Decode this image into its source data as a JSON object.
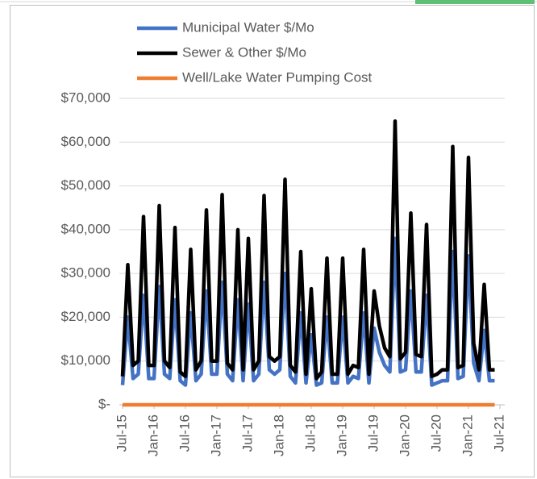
{
  "chart_data": {
    "type": "line",
    "categories": [
      "Jul-15",
      null,
      null,
      null,
      null,
      null,
      "Jan-16",
      null,
      null,
      null,
      null,
      null,
      "Jul-16",
      null,
      null,
      null,
      null,
      null,
      "Jan-17",
      null,
      null,
      null,
      null,
      null,
      "Jul-17",
      null,
      null,
      null,
      null,
      null,
      "Jan-18",
      null,
      null,
      null,
      null,
      null,
      "Jul-18",
      null,
      null,
      null,
      null,
      null,
      "Jan-19",
      null,
      null,
      null,
      null,
      null,
      "Jul-19",
      null,
      null,
      null,
      null,
      null,
      "Jan-20",
      null,
      null,
      null,
      null,
      null,
      "Jul-20",
      null,
      null,
      null,
      null,
      null,
      "Jan-21",
      null,
      null,
      null,
      null,
      null,
      "Jul-21"
    ],
    "series": [
      {
        "name": "Municipal Water $/Mo",
        "color": "#4472c4",
        "values": [
          4500,
          20000,
          6000,
          7000,
          25000,
          6000,
          6000,
          27000,
          7000,
          6000,
          24000,
          5500,
          4500,
          21000,
          5500,
          7000,
          26000,
          7000,
          7000,
          28000,
          7000,
          5500,
          24000,
          5500,
          23000,
          5500,
          7000,
          28000,
          8000,
          7000,
          8000,
          30000,
          6500,
          5000,
          21000,
          5000,
          16000,
          4500,
          5000,
          20000,
          5000,
          5000,
          20000,
          5000,
          6500,
          6000,
          21000,
          5000,
          17500,
          12000,
          9000,
          7500,
          38000,
          7500,
          8000,
          26000,
          7500,
          7500,
          25000,
          4500,
          5000,
          5500,
          5500,
          35000,
          6000,
          6500,
          34000,
          9500,
          5500,
          17000,
          5500,
          5500,
          null
        ]
      },
      {
        "name": "Sewer & Other $/Mo",
        "color": "#000000",
        "values": [
          6500,
          32000,
          9000,
          10000,
          43000,
          9000,
          9000,
          45500,
          10000,
          8500,
          40500,
          7500,
          6500,
          35500,
          8000,
          10000,
          44500,
          10000,
          10000,
          48000,
          9500,
          8000,
          40000,
          8000,
          38000,
          8000,
          10000,
          47800,
          11000,
          10000,
          11000,
          51500,
          9000,
          7500,
          35000,
          7000,
          26500,
          6000,
          7500,
          33500,
          7000,
          7000,
          33500,
          7000,
          9000,
          8500,
          35500,
          7000,
          26000,
          18000,
          13000,
          11000,
          64800,
          10500,
          12000,
          43800,
          11500,
          11000,
          41200,
          6500,
          7000,
          8000,
          8000,
          59000,
          8500,
          9000,
          56500,
          14000,
          8000,
          27500,
          8000,
          8000,
          null
        ]
      },
      {
        "name": "Well/Lake Water Pumping Cost",
        "color": "#ed7d31",
        "values": [
          0,
          0,
          0,
          0,
          0,
          0,
          0,
          0,
          0,
          0,
          0,
          0,
          0,
          0,
          0,
          0,
          0,
          0,
          0,
          0,
          0,
          0,
          0,
          0,
          0,
          0,
          0,
          0,
          0,
          0,
          0,
          0,
          0,
          0,
          0,
          0,
          0,
          0,
          0,
          0,
          0,
          0,
          0,
          0,
          0,
          0,
          0,
          0,
          0,
          0,
          0,
          0,
          0,
          0,
          0,
          0,
          0,
          0,
          0,
          0,
          0,
          0,
          0,
          0,
          0,
          0,
          0,
          0,
          0,
          0,
          0,
          0,
          null
        ]
      }
    ],
    "ylim": [
      0,
      70000
    ],
    "yticks": [
      {
        "value": 0,
        "label": "$-"
      },
      {
        "value": 10000,
        "label": "$10,000"
      },
      {
        "value": 20000,
        "label": "$20,000"
      },
      {
        "value": 30000,
        "label": "$30,000"
      },
      {
        "value": 40000,
        "label": "$40,000"
      },
      {
        "value": 50000,
        "label": "$50,000"
      },
      {
        "value": 60000,
        "label": "$60,000"
      },
      {
        "value": 70000,
        "label": "$70,000"
      }
    ],
    "grid": true,
    "legend": "top"
  }
}
